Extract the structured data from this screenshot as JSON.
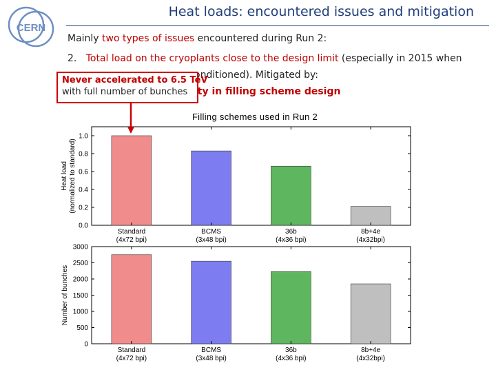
{
  "header": {
    "title": "Heat loads: encountered issues and mitigation",
    "logo_text": "CERN"
  },
  "bullets": {
    "intro_pre": "Mainly ",
    "intro_red": "two types of issues",
    "intro_post": " encountered during Run 2:",
    "item2_num": "2.",
    "item2_red": "Total load on the cryoplants close to the design limit",
    "item2_post": " (especially in 2015 when",
    "line2_text": "onditioned). Mitigated by:",
    "line3_text": "ity in filling scheme design"
  },
  "callout": {
    "line1": "Never accelerated to 6.5 TeV",
    "line2": "with full number of bunches"
  },
  "colors": {
    "title_blue": "#1f3f7a",
    "accent_red": "#d00000",
    "bar_colors": [
      "#f08080",
      "#6f6fef",
      "#4caf4c",
      "#b8b8b8"
    ]
  },
  "chart_data": [
    {
      "type": "bar",
      "title": "Filling schemes used in Run 2",
      "categories": [
        "Standard",
        "BCMS",
        "36b",
        "8b+4e"
      ],
      "category_sublabels": [
        "(4x72 bpi)",
        "(3x48 bpi)",
        "(4x36 bpi)",
        "(4x32bpi)"
      ],
      "values": [
        1.0,
        0.83,
        0.66,
        0.21
      ],
      "ylabel_lines": [
        "Heat load",
        "(normalized to standard)"
      ],
      "ylim": [
        0,
        1.1
      ],
      "yticks": [
        0.0,
        0.2,
        0.4,
        0.6,
        0.8,
        1.0
      ],
      "ytick_labels": [
        "0.0",
        "0.2",
        "0.4",
        "0.6",
        "0.8",
        "1.0"
      ],
      "grid": false
    },
    {
      "type": "bar",
      "title": "",
      "categories": [
        "Standard",
        "BCMS",
        "36b",
        "8b+4e"
      ],
      "category_sublabels": [
        "(4x72 bpi)",
        "(3x48 bpi)",
        "(4x36 bpi)",
        "(4x32bpi)"
      ],
      "values": [
        2750,
        2550,
        2230,
        1850
      ],
      "ylabel_lines": [
        "Number of bunches"
      ],
      "ylim": [
        0,
        3000
      ],
      "yticks": [
        0,
        500,
        1000,
        1500,
        2000,
        2500,
        3000
      ],
      "ytick_labels": [
        "0",
        "500",
        "1000",
        "1500",
        "2000",
        "2500",
        "3000"
      ],
      "grid": false
    }
  ]
}
